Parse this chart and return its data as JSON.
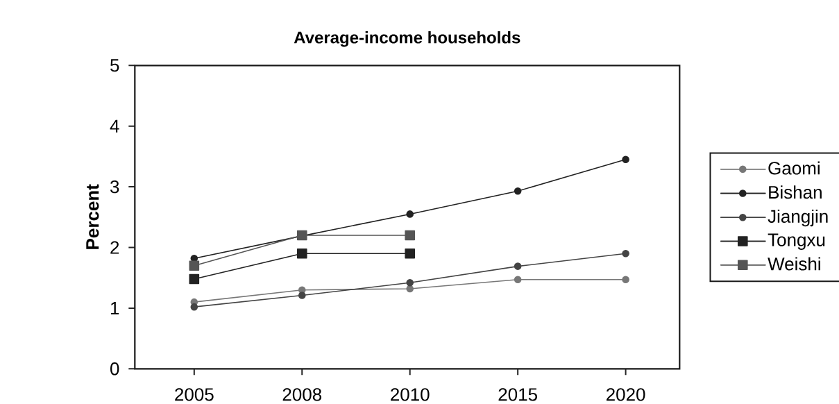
{
  "chart_data": {
    "type": "line",
    "title": "Average-income households",
    "ylabel": "Percent",
    "categories": [
      "2005",
      "2008",
      "2010",
      "2015",
      "2020"
    ],
    "ylim": [
      0,
      5
    ],
    "yticks": [
      0,
      1,
      2,
      3,
      4,
      5
    ],
    "grid": false,
    "legend": "right",
    "series": [
      {
        "name": "Gaomi",
        "color": "#777777",
        "marker": "circle",
        "values": [
          1.1,
          1.3,
          1.32,
          1.47,
          1.47
        ]
      },
      {
        "name": "Bishan",
        "color": "#222222",
        "marker": "circle",
        "values": [
          1.82,
          2.19,
          2.55,
          2.93,
          3.45
        ]
      },
      {
        "name": "Jiangjin",
        "color": "#444444",
        "marker": "circle",
        "values": [
          1.02,
          1.21,
          1.42,
          1.69,
          1.9
        ]
      },
      {
        "name": "Tongxu",
        "color": "#222222",
        "marker": "square",
        "values": [
          1.48,
          1.9,
          1.9,
          null,
          null
        ]
      },
      {
        "name": "Weishi",
        "color": "#555555",
        "marker": "square",
        "values": [
          1.7,
          2.2,
          2.2,
          null,
          null
        ]
      }
    ]
  }
}
